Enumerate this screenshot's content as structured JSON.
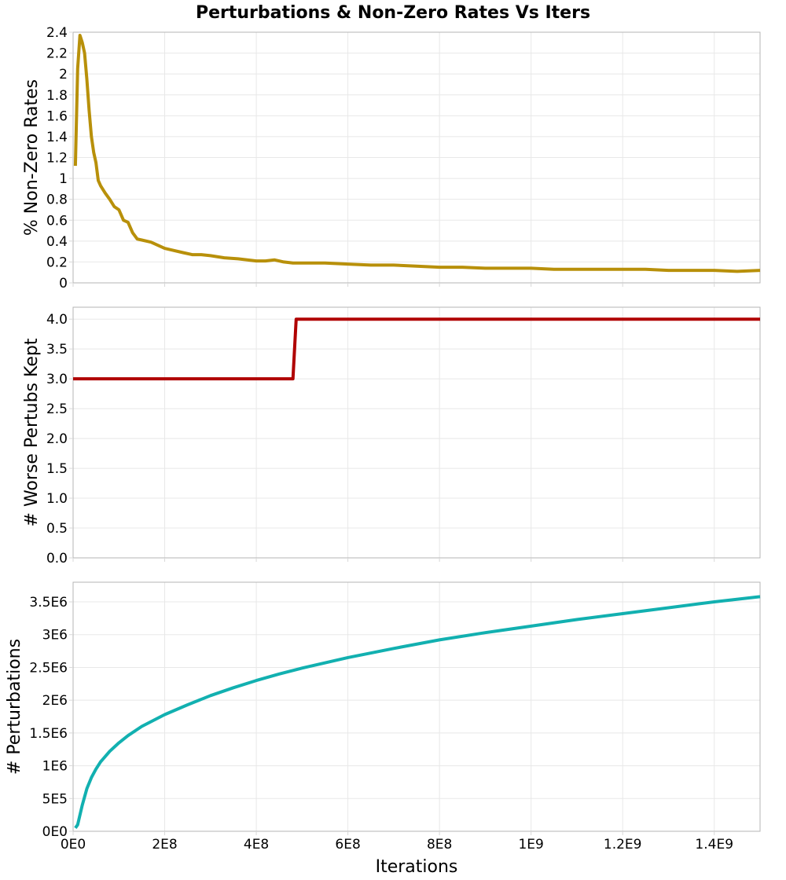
{
  "figure": {
    "title": "Perturbations & Non-Zero Rates Vs Iters",
    "xlabel": "Iterations"
  },
  "chart_data": [
    {
      "type": "line",
      "ylabel": "% Non-Zero Rates",
      "xlim": [
        0,
        1500000000
      ],
      "ylim": [
        0,
        2.4
      ],
      "xticks": [
        0,
        200000000,
        400000000,
        600000000,
        800000000,
        1000000000,
        1200000000,
        1400000000
      ],
      "xtick_labels": [],
      "yticks": [
        0,
        0.2,
        0.4,
        0.6,
        0.8,
        1.0,
        1.2,
        1.4,
        1.6,
        1.8,
        2.0,
        2.2,
        2.4
      ],
      "ytick_labels": [
        "0",
        "0.2",
        "0.4",
        "0.6",
        "0.8",
        "1",
        "1.2",
        "1.4",
        "1.6",
        "1.8",
        "2",
        "2.2",
        "2.4"
      ],
      "grid": true,
      "series": [
        {
          "color": "#b8900a",
          "x": [
            5000000,
            10000000,
            15000000,
            20000000,
            25000000,
            30000000,
            35000000,
            40000000,
            45000000,
            50000000,
            55000000,
            60000000,
            70000000,
            80000000,
            90000000,
            100000000,
            110000000,
            120000000,
            130000000,
            140000000,
            150000000,
            160000000,
            170000000,
            180000000,
            200000000,
            220000000,
            240000000,
            260000000,
            280000000,
            300000000,
            330000000,
            360000000,
            400000000,
            420000000,
            440000000,
            460000000,
            480000000,
            500000000,
            550000000,
            600000000,
            650000000,
            700000000,
            750000000,
            800000000,
            850000000,
            900000000,
            950000000,
            1000000000,
            1050000000,
            1100000000,
            1150000000,
            1200000000,
            1250000000,
            1300000000,
            1350000000,
            1400000000,
            1450000000,
            1500000000
          ],
          "y": [
            1.12,
            2.05,
            2.37,
            2.3,
            2.2,
            1.95,
            1.65,
            1.4,
            1.25,
            1.15,
            0.98,
            0.93,
            0.86,
            0.8,
            0.73,
            0.7,
            0.6,
            0.58,
            0.48,
            0.42,
            0.41,
            0.4,
            0.39,
            0.37,
            0.33,
            0.31,
            0.29,
            0.27,
            0.27,
            0.26,
            0.24,
            0.23,
            0.21,
            0.21,
            0.22,
            0.2,
            0.19,
            0.19,
            0.19,
            0.18,
            0.17,
            0.17,
            0.16,
            0.15,
            0.15,
            0.14,
            0.14,
            0.14,
            0.13,
            0.13,
            0.13,
            0.13,
            0.13,
            0.12,
            0.12,
            0.12,
            0.11,
            0.12
          ]
        }
      ]
    },
    {
      "type": "line",
      "ylabel": "# Worse Pertubs Kept",
      "xlim": [
        0,
        1500000000
      ],
      "ylim": [
        0,
        4.2
      ],
      "xticks": [
        0,
        200000000,
        400000000,
        600000000,
        800000000,
        1000000000,
        1200000000,
        1400000000
      ],
      "xtick_labels": [],
      "yticks": [
        0,
        0.5,
        1.0,
        1.5,
        2.0,
        2.5,
        3.0,
        3.5,
        4.0
      ],
      "ytick_labels": [
        "0.0",
        "0.5",
        "1.0",
        "1.5",
        "2.0",
        "2.5",
        "3.0",
        "3.5",
        "4.0"
      ],
      "grid": true,
      "series": [
        {
          "color": "#b00000",
          "x": [
            0,
            480000000,
            487000000,
            1500000000
          ],
          "y": [
            3,
            3,
            4,
            4
          ]
        }
      ]
    },
    {
      "type": "line",
      "ylabel": "# Perturbations",
      "xlim": [
        0,
        1500000000
      ],
      "ylim": [
        0,
        3800000
      ],
      "xticks": [
        0,
        200000000,
        400000000,
        600000000,
        800000000,
        1000000000,
        1200000000,
        1400000000
      ],
      "xtick_labels": [
        "0E0",
        "2E8",
        "4E8",
        "6E8",
        "8E8",
        "1E9",
        "1.2E9",
        "1.4E9"
      ],
      "yticks": [
        0,
        500000,
        1000000,
        1500000,
        2000000,
        2500000,
        3000000,
        3500000
      ],
      "ytick_labels": [
        "0E0",
        "5E5",
        "1E6",
        "1.5E6",
        "2E6",
        "2.5E6",
        "3E6",
        "3.5E6"
      ],
      "grid": true,
      "series": [
        {
          "color": "#12b0b0",
          "x": [
            5000000,
            10000000,
            20000000,
            30000000,
            40000000,
            50000000,
            60000000,
            80000000,
            100000000,
            120000000,
            150000000,
            200000000,
            250000000,
            300000000,
            350000000,
            400000000,
            450000000,
            500000000,
            600000000,
            700000000,
            800000000,
            900000000,
            1000000000,
            1100000000,
            1200000000,
            1300000000,
            1400000000,
            1500000000
          ],
          "y": [
            50000,
            100000,
            400000,
            650000,
            820000,
            950000,
            1060000,
            1220000,
            1350000,
            1460000,
            1600000,
            1780000,
            1930000,
            2070000,
            2190000,
            2300000,
            2400000,
            2490000,
            2650000,
            2790000,
            2920000,
            3030000,
            3130000,
            3230000,
            3320000,
            3410000,
            3500000,
            3580000
          ]
        }
      ]
    }
  ]
}
